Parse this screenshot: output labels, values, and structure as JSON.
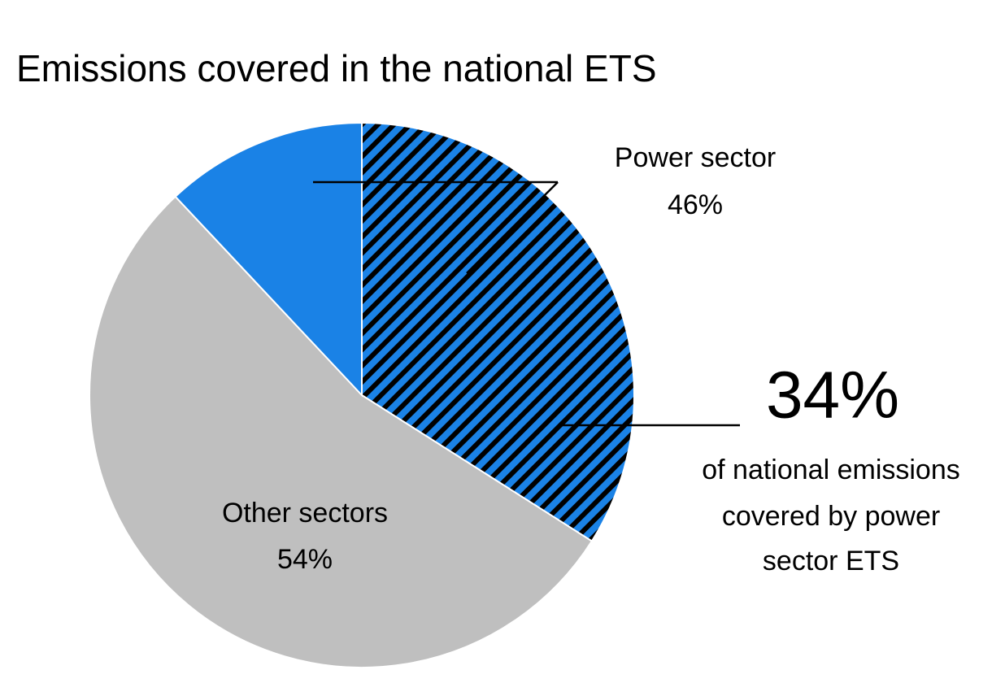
{
  "chart_data": {
    "type": "pie",
    "title": "Emissions covered in the national ETS",
    "categories": [
      "Power sector",
      "Other sectors"
    ],
    "values": [
      46,
      54
    ],
    "value_labels": [
      "46%",
      "54%"
    ],
    "colors": [
      "#1a82e6",
      "#bfbfbf"
    ],
    "highlight": {
      "value": 34,
      "value_label": "34%",
      "text": [
        "of national emissions",
        "covered by power",
        "sector ETS"
      ]
    }
  }
}
